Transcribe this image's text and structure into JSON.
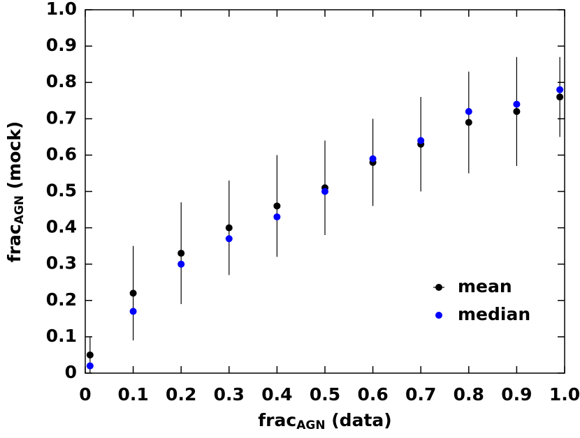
{
  "chart_data": {
    "type": "scatter",
    "xlabel": [
      "frac",
      "AGN",
      " (data)"
    ],
    "ylabel": [
      "frac",
      "AGN",
      " (mock)"
    ],
    "x": [
      0.01,
      0.1,
      0.2,
      0.3,
      0.4,
      0.5,
      0.6,
      0.7,
      0.8,
      0.9,
      0.99
    ],
    "series": [
      {
        "name": "mean",
        "color": "#000000",
        "values": [
          0.05,
          0.22,
          0.33,
          0.4,
          0.46,
          0.51,
          0.58,
          0.63,
          0.69,
          0.72,
          0.76
        ],
        "errors": [
          0.05,
          0.13,
          0.14,
          0.13,
          0.14,
          0.13,
          0.12,
          0.13,
          0.14,
          0.15,
          0.11
        ]
      },
      {
        "name": "median",
        "color": "#0000ff",
        "values": [
          0.02,
          0.17,
          0.3,
          0.37,
          0.43,
          0.5,
          0.59,
          0.64,
          0.72,
          0.74,
          0.78
        ]
      }
    ],
    "xlim": [
      0,
      1
    ],
    "ylim": [
      0,
      1
    ],
    "xticks": [
      0,
      0.1,
      0.2,
      0.3,
      0.4,
      0.5,
      0.6,
      0.7,
      0.8,
      0.9,
      {
        "value": 1,
        "label": "1.0"
      }
    ],
    "yticks": [
      0,
      0.1,
      0.2,
      0.3,
      0.4,
      0.5,
      0.6,
      0.7,
      0.8,
      0.9,
      {
        "value": 1,
        "label": "1.0"
      }
    ],
    "legend": "lower right"
  }
}
